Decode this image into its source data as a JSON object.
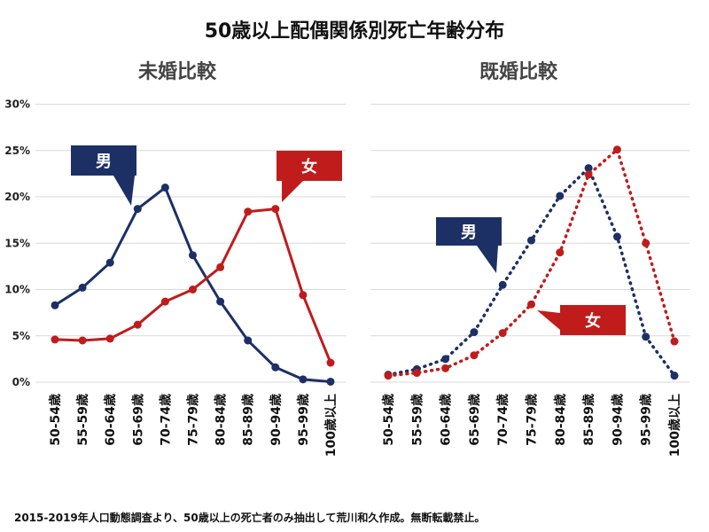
{
  "title": "50歳以上配偶関係別死亡年齢分布",
  "footnote": "2015-2019年人口動態調査より、50歳以上の死亡者のみ抽出して荒川和久作成。無断転載禁止。",
  "colors": {
    "male": "#1c3066",
    "female": "#c01c1c",
    "grid": "#d9d9d9"
  },
  "chart_data": [
    {
      "type": "line",
      "title": "未婚比較",
      "line_style": "solid",
      "categories": [
        "50-54歳",
        "55-59歳",
        "60-64歳",
        "65-69歳",
        "70-74歳",
        "75-79歳",
        "80-84歳",
        "85-89歳",
        "90-94歳",
        "95-99歳",
        "100歳以上"
      ],
      "ylim": [
        0,
        30
      ],
      "yticks": [
        "0%",
        "5%",
        "10%",
        "15%",
        "20%",
        "25%",
        "30%"
      ],
      "grid": true,
      "series": [
        {
          "name": "男",
          "color": "#1c3066",
          "values": [
            8.3,
            10.2,
            12.9,
            18.7,
            21.0,
            13.7,
            8.7,
            4.5,
            1.6,
            0.3,
            0.05
          ]
        },
        {
          "name": "女",
          "color": "#c01c1c",
          "values": [
            4.6,
            4.5,
            4.7,
            6.2,
            8.7,
            10.0,
            12.4,
            18.4,
            18.7,
            9.4,
            2.1
          ]
        }
      ]
    },
    {
      "type": "line",
      "title": "既婚比較",
      "line_style": "dotted",
      "categories": [
        "50-54歳",
        "55-59歳",
        "60-64歳",
        "65-69歳",
        "70-74歳",
        "75-79歳",
        "80-84歳",
        "85-89歳",
        "90-94歳",
        "95-99歳",
        "100歳以上"
      ],
      "ylim": [
        0,
        30
      ],
      "grid": true,
      "series": [
        {
          "name": "男",
          "color": "#1c3066",
          "values": [
            0.8,
            1.4,
            2.5,
            5.4,
            10.5,
            15.3,
            20.1,
            23.1,
            15.7,
            4.9,
            0.7
          ]
        },
        {
          "name": "女",
          "color": "#c01c1c",
          "values": [
            0.7,
            1.0,
            1.5,
            2.9,
            5.3,
            8.4,
            14.0,
            22.4,
            25.1,
            15.0,
            4.4
          ]
        }
      ]
    }
  ]
}
